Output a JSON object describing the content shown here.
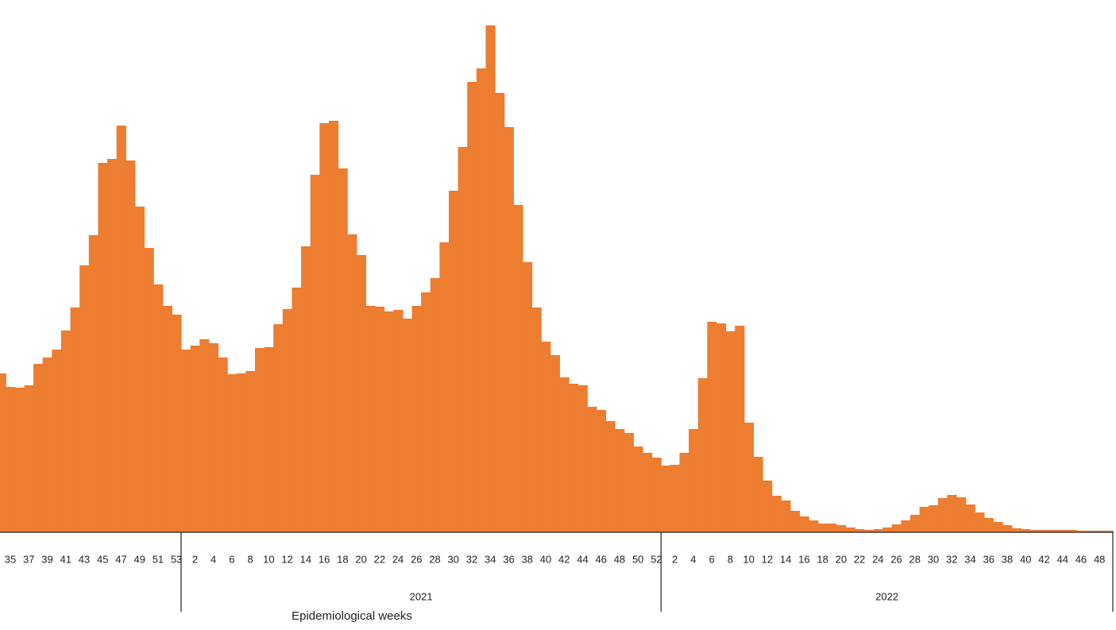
{
  "chart_data": {
    "type": "bar",
    "color": "#ED7D31",
    "x_label": "Epidemiological weeks",
    "ylim": [
      0,
      670
    ],
    "groups": [
      {
        "label": null,
        "categories": [
          null,
          "35",
          null,
          "37",
          null,
          "39",
          null,
          "41",
          null,
          "43",
          null,
          "45",
          null,
          "47",
          null,
          "49",
          null,
          "51",
          null,
          "53"
        ],
        "values": [
          200,
          183,
          182,
          185,
          212,
          220,
          230,
          254,
          283,
          336,
          374,
          465,
          470,
          512,
          468,
          410,
          358,
          312,
          285,
          274
        ]
      },
      {
        "label": "2021",
        "categories": [
          null,
          "2",
          null,
          "4",
          null,
          "6",
          null,
          "8",
          null,
          "10",
          null,
          "12",
          null,
          "14",
          null,
          "16",
          null,
          "18",
          null,
          "20",
          null,
          "22",
          null,
          "24",
          null,
          "26",
          null,
          "28",
          null,
          "30",
          null,
          "32",
          null,
          "34",
          null,
          "36",
          null,
          "38",
          null,
          "40",
          null,
          "42",
          null,
          "44",
          null,
          "46",
          null,
          "48",
          null,
          "50",
          null,
          "52"
        ],
        "values": [
          230,
          235,
          243,
          238,
          220,
          199,
          200,
          203,
          232,
          233,
          262,
          281,
          308,
          360,
          450,
          515,
          518,
          458,
          375,
          349,
          285,
          284,
          278,
          280,
          269,
          285,
          302,
          320,
          365,
          430,
          485,
          567,
          584,
          638,
          553,
          510,
          412,
          340,
          283,
          240,
          223,
          195,
          187,
          185,
          158,
          154,
          140,
          130,
          125,
          108,
          100,
          94
        ]
      },
      {
        "label": "2022",
        "categories": [
          null,
          "2",
          null,
          "4",
          null,
          "6",
          null,
          "8",
          null,
          "10",
          null,
          "12",
          null,
          "14",
          null,
          "16",
          null,
          "18",
          null,
          "20",
          null,
          "22",
          null,
          "24",
          null,
          "26",
          null,
          "28",
          null,
          "30",
          null,
          "32",
          null,
          "34",
          null,
          "36",
          null,
          "38",
          null,
          "40",
          null,
          "42",
          null,
          "44",
          null,
          "46",
          null,
          "48",
          null
        ],
        "values": [
          84,
          85,
          100,
          130,
          194,
          265,
          263,
          253,
          260,
          138,
          95,
          65,
          46,
          40,
          27,
          20,
          15,
          11,
          11,
          9,
          6,
          4,
          3,
          4,
          6,
          10,
          15,
          22,
          32,
          34,
          43,
          47,
          44,
          35,
          25,
          18,
          13,
          9,
          5,
          4,
          3,
          3,
          3,
          3,
          3,
          2,
          2,
          2,
          2
        ]
      }
    ]
  }
}
